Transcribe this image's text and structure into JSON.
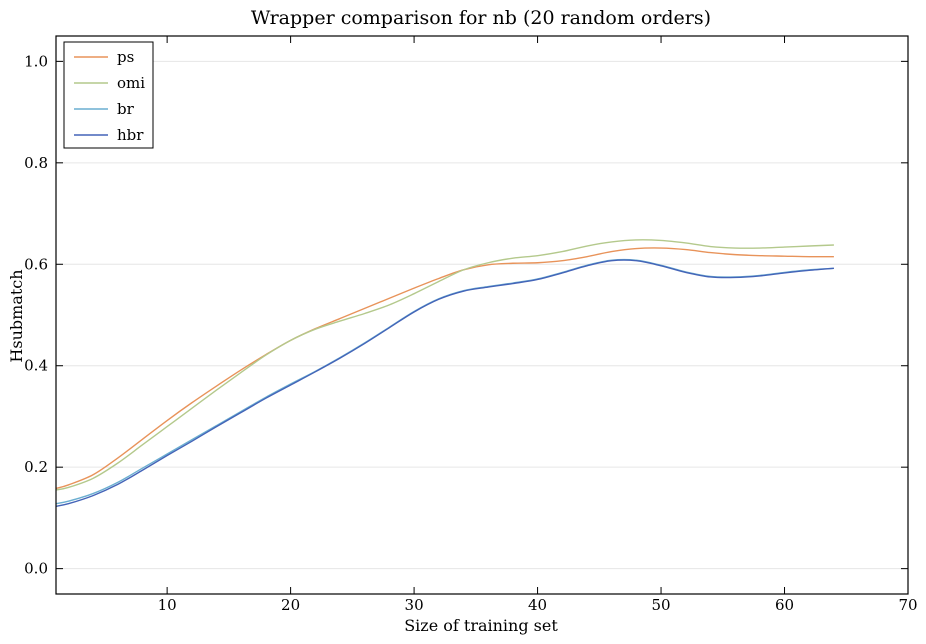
{
  "chart_data": {
    "type": "line",
    "title": "Wrapper comparison for nb (20 random orders)",
    "xlabel": "Size of training set",
    "ylabel": "Hsubmatch",
    "xlim": [
      1,
      70
    ],
    "ylim": [
      -0.05,
      1.05
    ],
    "xticks": [
      10,
      20,
      30,
      40,
      50,
      60,
      70
    ],
    "xtick_labels": [
      "10",
      "20",
      "30",
      "40",
      "50",
      "60",
      "70"
    ],
    "yticks": [
      0.0,
      0.2,
      0.4,
      0.6,
      0.8,
      1.0
    ],
    "ytick_labels": [
      "0.0",
      "0.2",
      "0.4",
      "0.6",
      "0.8",
      "1.0"
    ],
    "grid": "horizontal",
    "legend_position": "top-left",
    "series": [
      {
        "name": "ps",
        "color": "#e8935a",
        "x": [
          1,
          2,
          4,
          6,
          8,
          10,
          12,
          14,
          16,
          18,
          20,
          22,
          24,
          26,
          28,
          30,
          32,
          34,
          36,
          38,
          40,
          42,
          44,
          46,
          48,
          50,
          52,
          54,
          56,
          58,
          60,
          62,
          64
        ],
        "y": [
          0.158,
          0.165,
          0.185,
          0.218,
          0.255,
          0.292,
          0.327,
          0.36,
          0.392,
          0.422,
          0.45,
          0.473,
          0.493,
          0.513,
          0.533,
          0.553,
          0.572,
          0.589,
          0.599,
          0.602,
          0.603,
          0.607,
          0.615,
          0.625,
          0.631,
          0.632,
          0.629,
          0.623,
          0.619,
          0.617,
          0.616,
          0.615,
          0.615
        ]
      },
      {
        "name": "omi",
        "color": "#b4c98c",
        "x": [
          1,
          2,
          4,
          6,
          8,
          10,
          12,
          14,
          16,
          18,
          20,
          22,
          24,
          26,
          28,
          30,
          32,
          34,
          36,
          38,
          40,
          42,
          44,
          46,
          48,
          50,
          52,
          54,
          56,
          58,
          60,
          62,
          64
        ],
        "y": [
          0.155,
          0.16,
          0.178,
          0.208,
          0.244,
          0.28,
          0.316,
          0.352,
          0.387,
          0.421,
          0.45,
          0.472,
          0.488,
          0.503,
          0.52,
          0.542,
          0.566,
          0.589,
          0.603,
          0.612,
          0.617,
          0.625,
          0.636,
          0.644,
          0.648,
          0.647,
          0.642,
          0.635,
          0.632,
          0.632,
          0.634,
          0.636,
          0.638
        ]
      },
      {
        "name": "br",
        "color": "#6aaed0",
        "x": [
          1,
          2,
          4,
          6,
          8,
          10,
          12,
          14,
          16,
          18,
          20,
          22,
          24,
          26,
          28,
          30,
          32,
          34,
          36,
          38,
          40,
          42,
          44,
          46,
          48,
          50,
          52,
          54,
          56,
          58,
          60,
          62,
          64
        ],
        "y": [
          0.128,
          0.133,
          0.148,
          0.17,
          0.198,
          0.226,
          0.254,
          0.282,
          0.31,
          0.338,
          0.364,
          0.389,
          0.416,
          0.445,
          0.476,
          0.507,
          0.532,
          0.548,
          0.556,
          0.563,
          0.571,
          0.584,
          0.598,
          0.608,
          0.608,
          0.598,
          0.585,
          0.576,
          0.575,
          0.578,
          0.584,
          0.589,
          0.592
        ]
      },
      {
        "name": "hbr",
        "color": "#4464b8",
        "x": [
          1,
          2,
          4,
          6,
          8,
          10,
          12,
          14,
          16,
          18,
          20,
          22,
          24,
          26,
          28,
          30,
          32,
          34,
          36,
          38,
          40,
          42,
          44,
          46,
          48,
          50,
          52,
          54,
          56,
          58,
          60,
          62,
          64
        ],
        "y": [
          0.123,
          0.128,
          0.144,
          0.166,
          0.194,
          0.223,
          0.251,
          0.28,
          0.308,
          0.336,
          0.362,
          0.388,
          0.415,
          0.444,
          0.475,
          0.506,
          0.531,
          0.547,
          0.555,
          0.562,
          0.57,
          0.583,
          0.597,
          0.607,
          0.607,
          0.597,
          0.584,
          0.575,
          0.574,
          0.577,
          0.583,
          0.588,
          0.592
        ]
      }
    ]
  }
}
